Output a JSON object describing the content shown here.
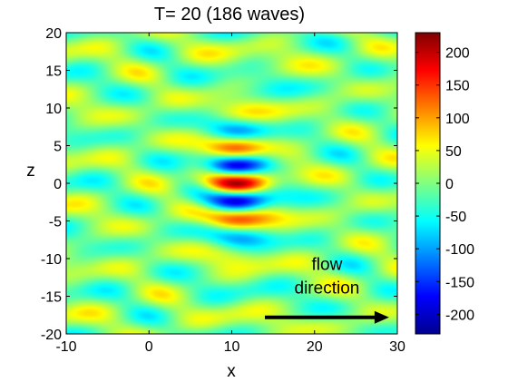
{
  "chart_data": {
    "type": "heatmap",
    "title": "T= 20   (186 waves)",
    "xlabel": "x",
    "ylabel": "z",
    "xlim": [
      -10,
      30
    ],
    "ylim": [
      -20,
      20
    ],
    "x_ticks": [
      -10,
      0,
      10,
      20,
      30
    ],
    "y_ticks": [
      -20,
      -15,
      -10,
      -5,
      0,
      5,
      10,
      15,
      20
    ],
    "colormap": "jet",
    "clim": [
      -230,
      230
    ],
    "colorbar_ticks": [
      200,
      150,
      100,
      50,
      0,
      -50,
      -100,
      -150,
      -200
    ],
    "wave_packet": {
      "center_x": 10.5,
      "z_wavelength": 5,
      "peak_amplitude": 230,
      "x_half_width": 4,
      "z_half_width": 7
    },
    "annotation": {
      "line1": "flow",
      "line2": "direction",
      "arrow_from_x": 14,
      "arrow_to_x": 29,
      "arrow_z": -17.8
    }
  }
}
